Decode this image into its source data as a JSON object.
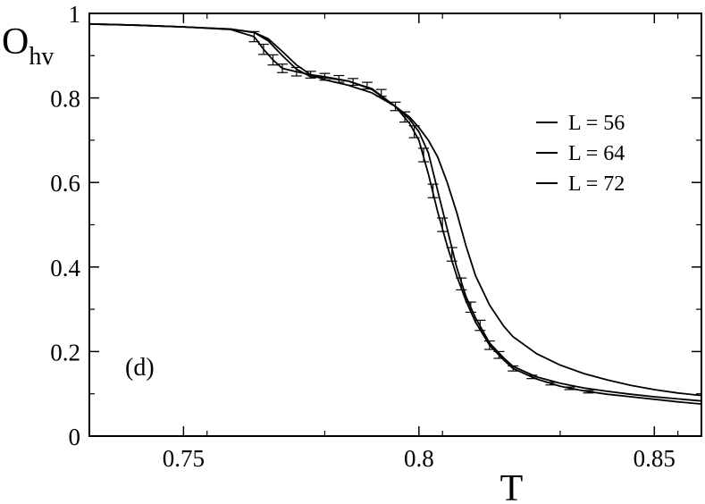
{
  "chart_data": {
    "type": "line",
    "title": "",
    "xlabel": "T",
    "ylabel": {
      "main": "O",
      "sub": "hv"
    },
    "xlim": [
      0.73,
      0.86
    ],
    "ylim": [
      0,
      1
    ],
    "xticks": [
      0.75,
      0.8,
      0.85
    ],
    "xtick_labels": [
      "0.75",
      "0.8",
      "0.85"
    ],
    "yticks": [
      0,
      0.2,
      0.4,
      0.6,
      0.8,
      1
    ],
    "ytick_labels": [
      "0",
      "0.2",
      "0.4",
      "0.6",
      "0.8",
      "1"
    ],
    "grid": false,
    "legend_position": "top-right",
    "annotation": "(d)",
    "colors": {
      "line": "#000000",
      "background": "#ffffff"
    },
    "series": [
      {
        "name": "L = 56",
        "x": [
          0.73,
          0.74,
          0.75,
          0.76,
          0.765,
          0.768,
          0.771,
          0.774,
          0.777,
          0.78,
          0.785,
          0.79,
          0.795,
          0.798,
          0.8,
          0.802,
          0.804,
          0.806,
          0.808,
          0.81,
          0.812,
          0.815,
          0.818,
          0.82,
          0.825,
          0.83,
          0.835,
          0.84,
          0.845,
          0.85,
          0.855,
          0.86
        ],
        "y": [
          0.975,
          0.972,
          0.968,
          0.963,
          0.955,
          0.94,
          0.91,
          0.878,
          0.855,
          0.843,
          0.83,
          0.812,
          0.78,
          0.755,
          0.73,
          0.7,
          0.66,
          0.6,
          0.53,
          0.45,
          0.38,
          0.31,
          0.26,
          0.235,
          0.195,
          0.168,
          0.148,
          0.133,
          0.12,
          0.11,
          0.102,
          0.096
        ]
      },
      {
        "name": "L = 64",
        "x": [
          0.73,
          0.74,
          0.75,
          0.76,
          0.765,
          0.768,
          0.771,
          0.774,
          0.777,
          0.78,
          0.785,
          0.79,
          0.795,
          0.798,
          0.8,
          0.802,
          0.804,
          0.806,
          0.808,
          0.81,
          0.812,
          0.815,
          0.818,
          0.82,
          0.825,
          0.83,
          0.835,
          0.84,
          0.845,
          0.85,
          0.855,
          0.86
        ],
        "y": [
          0.975,
          0.972,
          0.968,
          0.963,
          0.955,
          0.935,
          0.9,
          0.868,
          0.85,
          0.848,
          0.84,
          0.822,
          0.78,
          0.75,
          0.72,
          0.67,
          0.58,
          0.49,
          0.4,
          0.33,
          0.28,
          0.22,
          0.185,
          0.165,
          0.14,
          0.125,
          0.114,
          0.106,
          0.099,
          0.093,
          0.088,
          0.083
        ]
      },
      {
        "name": "L = 72",
        "x": [
          0.73,
          0.74,
          0.75,
          0.76,
          0.765,
          0.767,
          0.769,
          0.771,
          0.774,
          0.777,
          0.78,
          0.785,
          0.79,
          0.795,
          0.798,
          0.8,
          0.802,
          0.804,
          0.806,
          0.808,
          0.81,
          0.812,
          0.815,
          0.818,
          0.82,
          0.825,
          0.83,
          0.835,
          0.84,
          0.845,
          0.85,
          0.855,
          0.86
        ],
        "y": [
          0.975,
          0.972,
          0.968,
          0.962,
          0.945,
          0.915,
          0.89,
          0.87,
          0.862,
          0.855,
          0.85,
          0.84,
          0.82,
          0.78,
          0.74,
          0.7,
          0.62,
          0.53,
          0.45,
          0.38,
          0.32,
          0.27,
          0.215,
          0.18,
          0.16,
          0.135,
          0.118,
          0.107,
          0.099,
          0.093,
          0.087,
          0.081,
          0.076
        ]
      }
    ],
    "error_bars": {
      "series": "L = 72",
      "x": [
        0.765,
        0.767,
        0.769,
        0.771,
        0.774,
        0.777,
        0.78,
        0.783,
        0.786,
        0.789,
        0.792,
        0.795,
        0.797,
        0.799,
        0.801,
        0.803,
        0.805,
        0.807,
        0.809,
        0.811,
        0.813,
        0.815,
        0.817,
        0.82,
        0.824,
        0.828,
        0.832,
        0.836
      ],
      "y": [
        0.945,
        0.915,
        0.89,
        0.87,
        0.862,
        0.855,
        0.85,
        0.845,
        0.838,
        0.829,
        0.812,
        0.78,
        0.755,
        0.72,
        0.665,
        0.58,
        0.5,
        0.43,
        0.36,
        0.305,
        0.262,
        0.215,
        0.192,
        0.16,
        0.14,
        0.124,
        0.113,
        0.105
      ],
      "err": [
        0.012,
        0.012,
        0.012,
        0.01,
        0.01,
        0.008,
        0.008,
        0.008,
        0.008,
        0.008,
        0.008,
        0.01,
        0.012,
        0.014,
        0.016,
        0.016,
        0.016,
        0.016,
        0.014,
        0.012,
        0.012,
        0.01,
        0.008,
        0.006,
        0.004,
        0.003,
        0.003,
        0.003
      ]
    }
  }
}
